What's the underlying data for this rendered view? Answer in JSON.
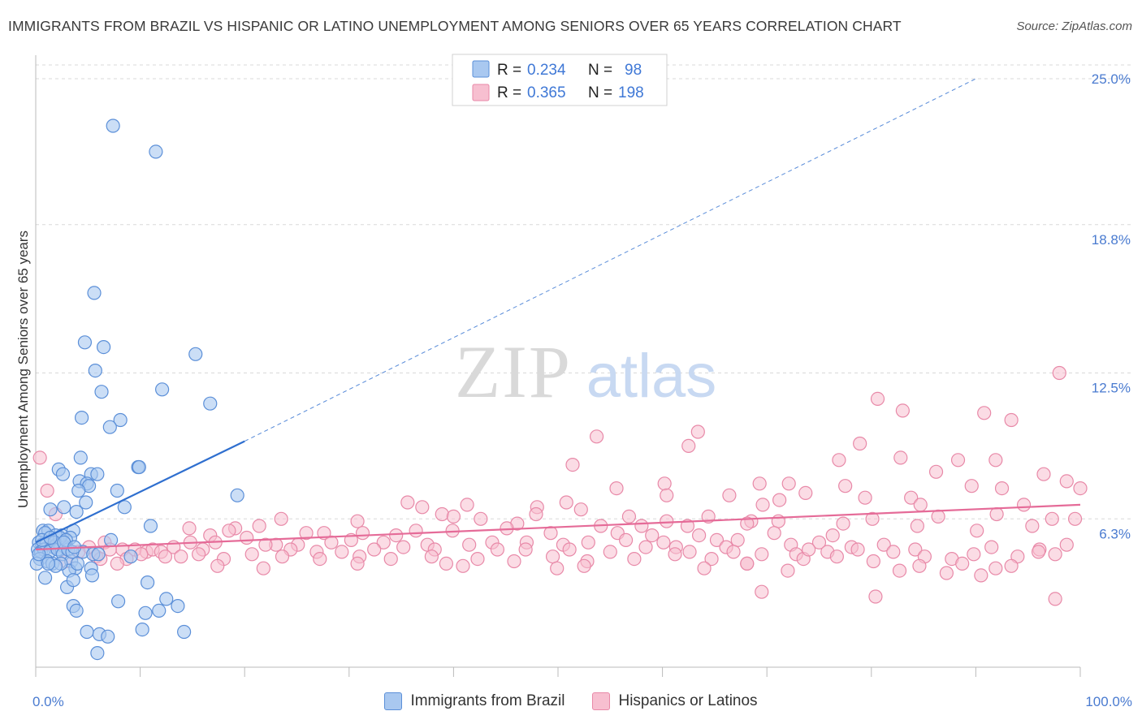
{
  "header": {
    "title": "IMMIGRANTS FROM BRAZIL VS HISPANIC OR LATINO UNEMPLOYMENT AMONG SENIORS OVER 65 YEARS CORRELATION CHART",
    "source": "Source: ZipAtlas.com"
  },
  "watermark": {
    "zip": "ZIP",
    "atlas": "atlas"
  },
  "colors": {
    "blue_fill": "#a9c8f0",
    "blue_stroke": "#5b8fd8",
    "blue_line": "#2f6fcf",
    "pink_fill": "#f7bfd0",
    "pink_stroke": "#e889a8",
    "pink_line": "#e56b98",
    "tick_color": "#4a7bd0",
    "grid": "#d8d8d8"
  },
  "legend_top": {
    "rows": [
      {
        "r_label": "R = ",
        "r_value": "0.234",
        "n_label": "N = ",
        "n_value": "98",
        "color": "#a9c8f0",
        "stroke": "#5b8fd8"
      },
      {
        "r_label": "R = ",
        "r_value": "0.365",
        "n_label": "N = ",
        "n_value": "198",
        "color": "#f7bfd0",
        "stroke": "#e889a8"
      }
    ]
  },
  "legend_bottom": [
    {
      "label": "Immigrants from Brazil",
      "color": "#a9c8f0",
      "stroke": "#5b8fd8"
    },
    {
      "label": "Hispanics or Latinos",
      "color": "#f7bfd0",
      "stroke": "#e889a8"
    }
  ],
  "chart_data": {
    "type": "scatter",
    "title": "IMMIGRANTS FROM BRAZIL VS HISPANIC OR LATINO UNEMPLOYMENT AMONG SENIORS OVER 65 YEARS CORRELATION CHART",
    "xlabel": "",
    "ylabel": "Unemployment Among Seniors over 65 years",
    "xlim": [
      0,
      100
    ],
    "ylim": [
      0,
      25.0
    ],
    "x_tick_labels": [
      "0.0%",
      "100.0%"
    ],
    "y_ticks": [
      6.3,
      12.5,
      18.8,
      25.0
    ],
    "y_tick_labels": [
      "6.3%",
      "12.5%",
      "18.8%",
      "25.0%"
    ],
    "grid": "horizontal dashed",
    "legend_position": "top-center",
    "series": [
      {
        "name": "Immigrants from Brazil",
        "r": 0.234,
        "n": 98,
        "trend": {
          "x0": 0,
          "y0": 5.3,
          "x1": 20,
          "y1": 9.6,
          "dashed_to_x": 90,
          "dashed_to_y": 25.0
        },
        "points": [
          [
            7.4,
            23.0
          ],
          [
            11.5,
            21.9
          ],
          [
            5.6,
            15.9
          ],
          [
            4.7,
            13.8
          ],
          [
            6.5,
            13.6
          ],
          [
            15.3,
            13.3
          ],
          [
            5.7,
            12.6
          ],
          [
            12.1,
            11.8
          ],
          [
            6.3,
            11.7
          ],
          [
            16.7,
            11.2
          ],
          [
            4.4,
            10.6
          ],
          [
            8.1,
            10.5
          ],
          [
            7.1,
            10.2
          ],
          [
            4.3,
            8.9
          ],
          [
            9.8,
            8.5
          ],
          [
            9.9,
            8.5
          ],
          [
            2.2,
            8.4
          ],
          [
            2.6,
            8.2
          ],
          [
            5.3,
            8.2
          ],
          [
            5.9,
            8.2
          ],
          [
            4.2,
            7.9
          ],
          [
            4.9,
            7.8
          ],
          [
            5.1,
            7.7
          ],
          [
            4.1,
            7.5
          ],
          [
            7.8,
            7.5
          ],
          [
            19.3,
            7.3
          ],
          [
            4.8,
            7.0
          ],
          [
            8.5,
            6.8
          ],
          [
            2.7,
            6.8
          ],
          [
            1.4,
            6.7
          ],
          [
            3.9,
            6.6
          ],
          [
            11.0,
            6.0
          ],
          [
            0.7,
            5.8
          ],
          [
            1.2,
            5.8
          ],
          [
            0.9,
            5.7
          ],
          [
            3.6,
            5.8
          ],
          [
            2.5,
            5.6
          ],
          [
            1.9,
            5.6
          ],
          [
            3.3,
            5.5
          ],
          [
            7.2,
            5.4
          ],
          [
            0.3,
            5.3
          ],
          [
            0.6,
            5.2
          ],
          [
            1.0,
            5.2
          ],
          [
            1.5,
            5.3
          ],
          [
            1.7,
            5.1
          ],
          [
            2.0,
            5.2
          ],
          [
            2.3,
            5.0
          ],
          [
            2.8,
            5.1
          ],
          [
            0.2,
            5.0
          ],
          [
            0.5,
            4.9
          ],
          [
            0.8,
            5.0
          ],
          [
            1.3,
            4.9
          ],
          [
            2.1,
            5.0
          ],
          [
            2.6,
            4.8
          ],
          [
            3.1,
            5.0
          ],
          [
            4.5,
            4.9
          ],
          [
            5.5,
            4.8
          ],
          [
            6.0,
            4.8
          ],
          [
            0.4,
            4.6
          ],
          [
            1.1,
            4.5
          ],
          [
            1.6,
            4.4
          ],
          [
            3.4,
            4.5
          ],
          [
            0.1,
            4.4
          ],
          [
            3.8,
            4.2
          ],
          [
            5.3,
            4.2
          ],
          [
            3.2,
            4.1
          ],
          [
            0.9,
            3.8
          ],
          [
            5.4,
            3.9
          ],
          [
            9.1,
            4.7
          ],
          [
            3.0,
            3.4
          ],
          [
            3.6,
            3.7
          ],
          [
            10.7,
            3.6
          ],
          [
            12.5,
            2.9
          ],
          [
            7.9,
            2.8
          ],
          [
            13.6,
            2.6
          ],
          [
            3.6,
            2.6
          ],
          [
            3.9,
            2.4
          ],
          [
            10.5,
            2.3
          ],
          [
            11.8,
            2.4
          ],
          [
            10.2,
            1.6
          ],
          [
            4.9,
            1.5
          ],
          [
            6.1,
            1.4
          ],
          [
            6.9,
            1.3
          ],
          [
            14.2,
            1.5
          ],
          [
            5.9,
            0.6
          ],
          [
            2.3,
            5.5
          ],
          [
            1.8,
            5.3
          ],
          [
            2.9,
            5.4
          ],
          [
            0.6,
            5.4
          ],
          [
            1.4,
            5.5
          ],
          [
            3.5,
            4.9
          ],
          [
            2.4,
            4.4
          ],
          [
            1.9,
            4.3
          ],
          [
            4.0,
            4.4
          ],
          [
            0.3,
            4.8
          ],
          [
            1.2,
            4.4
          ],
          [
            2.7,
            5.3
          ],
          [
            3.7,
            5.1
          ]
        ]
      },
      {
        "name": "Hispanics or Latinos",
        "r": 0.365,
        "n": 198,
        "trend": {
          "x0": 0,
          "y0": 5.0,
          "x1": 100,
          "y1": 6.9
        },
        "points": [
          [
            98.0,
            12.5
          ],
          [
            80.6,
            11.4
          ],
          [
            83.0,
            10.9
          ],
          [
            90.8,
            10.8
          ],
          [
            93.4,
            10.5
          ],
          [
            63.4,
            10.0
          ],
          [
            53.7,
            9.8
          ],
          [
            62.5,
            9.4
          ],
          [
            78.9,
            9.5
          ],
          [
            76.9,
            8.8
          ],
          [
            88.3,
            8.8
          ],
          [
            96.5,
            8.2
          ],
          [
            82.8,
            8.9
          ],
          [
            91.9,
            8.8
          ],
          [
            86.2,
            8.3
          ],
          [
            51.4,
            8.6
          ],
          [
            0.4,
            8.9
          ],
          [
            60.2,
            7.8
          ],
          [
            69.3,
            7.8
          ],
          [
            72.1,
            7.8
          ],
          [
            77.5,
            7.7
          ],
          [
            89.6,
            7.7
          ],
          [
            92.5,
            7.6
          ],
          [
            98.7,
            7.9
          ],
          [
            100.0,
            7.6
          ],
          [
            1.1,
            7.5
          ],
          [
            55.6,
            7.6
          ],
          [
            60.4,
            7.3
          ],
          [
            66.4,
            7.3
          ],
          [
            73.7,
            7.4
          ],
          [
            79.4,
            7.2
          ],
          [
            83.8,
            7.2
          ],
          [
            71.2,
            7.1
          ],
          [
            69.6,
            6.9
          ],
          [
            84.7,
            6.9
          ],
          [
            94.6,
            6.9
          ],
          [
            35.6,
            7.0
          ],
          [
            41.3,
            6.9
          ],
          [
            50.8,
            7.0
          ],
          [
            52.2,
            6.7
          ],
          [
            48.0,
            6.8
          ],
          [
            37.0,
            6.8
          ],
          [
            38.9,
            6.5
          ],
          [
            47.9,
            6.5
          ],
          [
            56.8,
            6.4
          ],
          [
            60.4,
            6.2
          ],
          [
            64.4,
            6.4
          ],
          [
            68.5,
            6.2
          ],
          [
            80.1,
            6.3
          ],
          [
            86.4,
            6.4
          ],
          [
            92.0,
            6.5
          ],
          [
            97.3,
            6.3
          ],
          [
            1.9,
            6.5
          ],
          [
            23.5,
            6.3
          ],
          [
            30.8,
            6.2
          ],
          [
            40.0,
            6.4
          ],
          [
            42.6,
            6.3
          ],
          [
            46.1,
            6.1
          ],
          [
            54.1,
            6.0
          ],
          [
            58.0,
            6.0
          ],
          [
            62.4,
            6.0
          ],
          [
            68.1,
            6.1
          ],
          [
            71.1,
            6.2
          ],
          [
            77.3,
            6.1
          ],
          [
            84.4,
            6.0
          ],
          [
            90.1,
            5.8
          ],
          [
            95.4,
            6.0
          ],
          [
            99.5,
            6.3
          ],
          [
            14.7,
            5.9
          ],
          [
            19.1,
            5.9
          ],
          [
            21.4,
            6.0
          ],
          [
            25.9,
            5.7
          ],
          [
            27.6,
            5.7
          ],
          [
            31.3,
            5.7
          ],
          [
            36.4,
            5.8
          ],
          [
            39.9,
            5.8
          ],
          [
            45.1,
            5.9
          ],
          [
            49.3,
            5.7
          ],
          [
            55.7,
            5.7
          ],
          [
            59.0,
            5.6
          ],
          [
            63.5,
            5.6
          ],
          [
            70.7,
            5.7
          ],
          [
            76.3,
            5.6
          ],
          [
            16.7,
            5.6
          ],
          [
            18.5,
            5.8
          ],
          [
            20.2,
            5.5
          ],
          [
            23.0,
            5.2
          ],
          [
            25.1,
            5.2
          ],
          [
            28.3,
            5.3
          ],
          [
            30.2,
            5.4
          ],
          [
            33.3,
            5.3
          ],
          [
            34.5,
            5.6
          ],
          [
            37.5,
            5.2
          ],
          [
            43.7,
            5.3
          ],
          [
            47.0,
            5.3
          ],
          [
            50.5,
            5.2
          ],
          [
            52.9,
            5.3
          ],
          [
            56.5,
            5.4
          ],
          [
            60.1,
            5.3
          ],
          [
            61.3,
            5.1
          ],
          [
            65.2,
            5.4
          ],
          [
            66.1,
            5.1
          ],
          [
            67.2,
            5.4
          ],
          [
            72.3,
            5.2
          ],
          [
            75.0,
            5.3
          ],
          [
            78.1,
            5.1
          ],
          [
            81.2,
            5.2
          ],
          [
            84.2,
            5.0
          ],
          [
            91.5,
            5.1
          ],
          [
            96.1,
            5.0
          ],
          [
            98.7,
            5.2
          ],
          [
            5.1,
            5.1
          ],
          [
            6.6,
            5.3
          ],
          [
            8.3,
            5.0
          ],
          [
            9.5,
            5.0
          ],
          [
            10.6,
            4.9
          ],
          [
            11.2,
            5.0
          ],
          [
            13.2,
            5.1
          ],
          [
            14.8,
            5.3
          ],
          [
            16.0,
            5.0
          ],
          [
            17.2,
            5.3
          ],
          [
            22.0,
            5.2
          ],
          [
            24.4,
            5.0
          ],
          [
            26.9,
            4.9
          ],
          [
            29.3,
            4.9
          ],
          [
            32.4,
            5.0
          ],
          [
            35.2,
            5.1
          ],
          [
            38.2,
            5.0
          ],
          [
            41.5,
            5.2
          ],
          [
            44.2,
            5.0
          ],
          [
            46.9,
            5.0
          ],
          [
            51.1,
            5.0
          ],
          [
            55.0,
            4.9
          ],
          [
            58.4,
            5.1
          ],
          [
            62.6,
            4.9
          ],
          [
            66.8,
            4.9
          ],
          [
            69.5,
            4.8
          ],
          [
            72.8,
            4.8
          ],
          [
            75.8,
            4.9
          ],
          [
            78.7,
            5.0
          ],
          [
            82.1,
            4.9
          ],
          [
            85.1,
            4.7
          ],
          [
            87.7,
            4.6
          ],
          [
            89.8,
            4.8
          ],
          [
            94.0,
            4.7
          ],
          [
            97.6,
            4.8
          ],
          [
            4.1,
            4.9
          ],
          [
            5.8,
            4.7
          ],
          [
            7.1,
            5.0
          ],
          [
            8.7,
            4.6
          ],
          [
            10.1,
            4.8
          ],
          [
            12.0,
            4.9
          ],
          [
            13.9,
            4.7
          ],
          [
            15.6,
            4.8
          ],
          [
            18.0,
            4.6
          ],
          [
            20.7,
            4.8
          ],
          [
            23.6,
            4.7
          ],
          [
            27.2,
            4.6
          ],
          [
            31.0,
            4.7
          ],
          [
            34.0,
            4.6
          ],
          [
            37.9,
            4.7
          ],
          [
            39.3,
            4.4
          ],
          [
            42.3,
            4.6
          ],
          [
            45.8,
            4.5
          ],
          [
            49.5,
            4.7
          ],
          [
            52.8,
            4.5
          ],
          [
            57.3,
            4.6
          ],
          [
            61.2,
            4.8
          ],
          [
            64.7,
            4.6
          ],
          [
            68.1,
            4.4
          ],
          [
            73.5,
            4.6
          ],
          [
            76.7,
            4.7
          ],
          [
            80.2,
            4.5
          ],
          [
            84.6,
            4.3
          ],
          [
            88.7,
            4.4
          ],
          [
            91.9,
            4.2
          ],
          [
            2.9,
            4.5
          ],
          [
            7.8,
            4.4
          ],
          [
            17.4,
            4.3
          ],
          [
            21.8,
            4.2
          ],
          [
            30.8,
            4.4
          ],
          [
            40.9,
            4.3
          ],
          [
            49.9,
            4.2
          ],
          [
            64.0,
            4.2
          ],
          [
            68.1,
            4.4
          ],
          [
            72.0,
            4.1
          ],
          [
            82.7,
            4.1
          ],
          [
            87.2,
            4.0
          ],
          [
            93.4,
            4.3
          ],
          [
            6.2,
            4.6
          ],
          [
            12.4,
            4.7
          ],
          [
            52.5,
            4.3
          ],
          [
            90.5,
            3.9
          ],
          [
            69.5,
            3.2
          ],
          [
            80.4,
            3.0
          ],
          [
            97.6,
            2.9
          ],
          [
            96.0,
            4.9
          ],
          [
            74.0,
            5.0
          ]
        ]
      }
    ]
  }
}
